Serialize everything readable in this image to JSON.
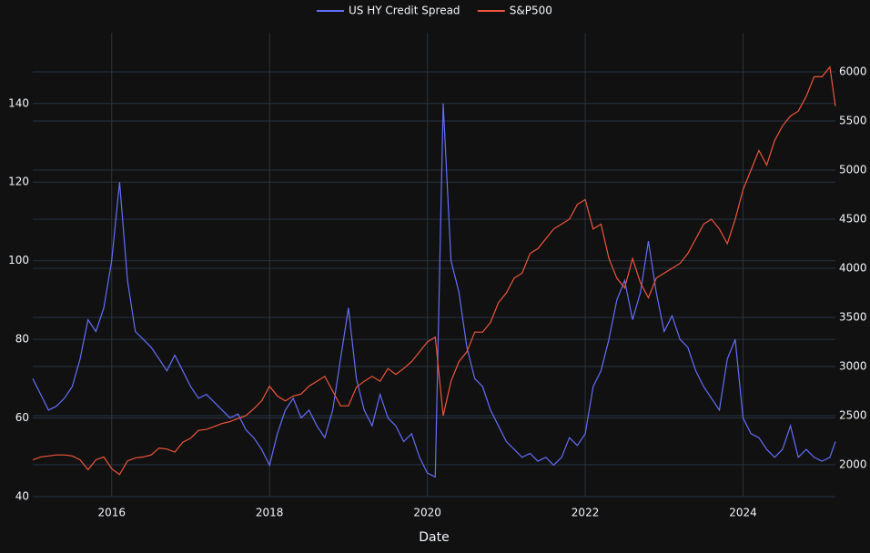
{
  "chart_data": {
    "type": "line",
    "x_label": "Date",
    "x": [
      2015,
      2015.1,
      2015.2,
      2015.3,
      2015.4,
      2015.5,
      2015.6,
      2015.7,
      2015.8,
      2015.9,
      2016,
      2016.1,
      2016.2,
      2016.3,
      2016.4,
      2016.5,
      2016.6,
      2016.7,
      2016.8,
      2016.9,
      2017,
      2017.1,
      2017.2,
      2017.3,
      2017.4,
      2017.5,
      2017.6,
      2017.7,
      2017.8,
      2017.9,
      2018,
      2018.1,
      2018.2,
      2018.3,
      2018.4,
      2018.5,
      2018.6,
      2018.7,
      2018.8,
      2018.9,
      2019,
      2019.1,
      2019.2,
      2019.3,
      2019.4,
      2019.5,
      2019.6,
      2019.7,
      2019.8,
      2019.9,
      2020,
      2020.1,
      2020.2,
      2020.3,
      2020.4,
      2020.5,
      2020.6,
      2020.7,
      2020.8,
      2020.9,
      2021,
      2021.1,
      2021.2,
      2021.3,
      2021.4,
      2021.5,
      2021.6,
      2021.7,
      2021.8,
      2021.9,
      2022,
      2022.1,
      2022.2,
      2022.3,
      2022.4,
      2022.5,
      2022.6,
      2022.7,
      2022.8,
      2022.9,
      2023,
      2023.1,
      2023.2,
      2023.3,
      2023.4,
      2023.5,
      2023.6,
      2023.7,
      2023.8,
      2023.9,
      2024,
      2024.1,
      2024.2,
      2024.3,
      2024.4,
      2024.5,
      2024.6,
      2024.7,
      2024.8,
      2024.9,
      2025,
      2025.1,
      2025.17
    ],
    "series": [
      {
        "name": "US HY Credit Spread",
        "color": "#636efa",
        "axis": "y",
        "values": [
          70,
          66,
          62,
          63,
          65,
          68,
          75,
          85,
          82,
          88,
          100,
          120,
          95,
          82,
          80,
          78,
          75,
          72,
          76,
          72,
          68,
          65,
          66,
          64,
          62,
          60,
          61,
          57,
          55,
          52,
          48,
          56,
          62,
          65,
          60,
          62,
          58,
          55,
          62,
          75,
          88,
          70,
          62,
          58,
          66,
          60,
          58,
          54,
          56,
          50,
          46,
          45,
          140,
          100,
          92,
          78,
          70,
          68,
          62,
          58,
          54,
          52,
          50,
          51,
          49,
          50,
          48,
          50,
          55,
          53,
          56,
          68,
          72,
          80,
          90,
          95,
          85,
          92,
          105,
          92,
          82,
          86,
          80,
          78,
          72,
          68,
          65,
          62,
          75,
          80,
          60,
          56,
          55,
          52,
          50,
          52,
          58,
          50,
          52,
          50,
          49,
          50,
          54
        ]
      },
      {
        "name": "S&P500",
        "color": "#ef553b",
        "axis": "y2",
        "values": [
          2050,
          2080,
          2090,
          2100,
          2100,
          2090,
          2050,
          1950,
          2050,
          2080,
          1960,
          1900,
          2040,
          2070,
          2080,
          2100,
          2170,
          2160,
          2130,
          2230,
          2270,
          2350,
          2360,
          2390,
          2420,
          2440,
          2470,
          2500,
          2570,
          2650,
          2800,
          2700,
          2650,
          2700,
          2720,
          2800,
          2850,
          2900,
          2750,
          2600,
          2600,
          2790,
          2850,
          2900,
          2850,
          2980,
          2920,
          2980,
          3050,
          3150,
          3250,
          3300,
          2500,
          2850,
          3050,
          3150,
          3350,
          3350,
          3450,
          3650,
          3750,
          3900,
          3950,
          4150,
          4200,
          4300,
          4400,
          4450,
          4500,
          4650,
          4700,
          4400,
          4450,
          4100,
          3900,
          3800,
          4100,
          3850,
          3700,
          3900,
          3950,
          4000,
          4050,
          4150,
          4300,
          4450,
          4500,
          4400,
          4250,
          4500,
          4800,
          5000,
          5200,
          5050,
          5300,
          5450,
          5550,
          5600,
          5750,
          5950,
          5950,
          6050,
          5650
        ]
      }
    ],
    "xlim": [
      2015.0,
      2025.17
    ],
    "xticks": [
      2016,
      2018,
      2020,
      2022,
      2024
    ],
    "ylim": [
      40,
      158
    ],
    "yticks": [
      40,
      60,
      80,
      100,
      120,
      140
    ],
    "y2lim": [
      1676,
      6398
    ],
    "y2ticks": [
      2000,
      2500,
      3000,
      3500,
      4000,
      4500,
      5000,
      5500,
      6000
    ],
    "grid": true,
    "legend": "top"
  }
}
